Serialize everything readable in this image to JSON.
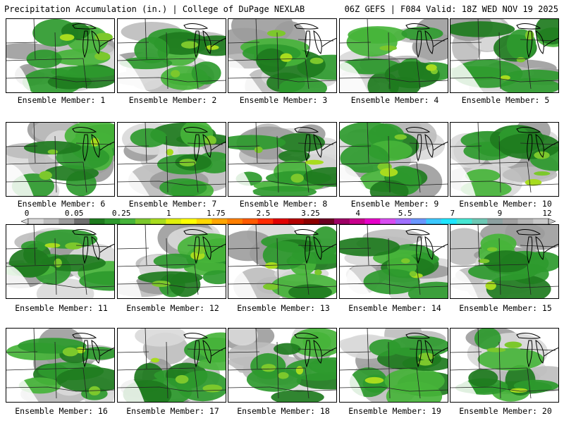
{
  "header": {
    "title_left": "Precipitation Accumulation (in.) | College of DuPage NEXLAB",
    "title_right": "06Z GEFS | F084 Valid: 18Z WED NOV 19 2025"
  },
  "colorbar": {
    "labels": [
      "0",
      "0.05",
      "0.25",
      "1",
      "1.75",
      "2.5",
      "3.25",
      "4",
      "5.5",
      "7",
      "9",
      "12"
    ],
    "colors": [
      "#d9d9d9",
      "#bdbdbd",
      "#9c9c9c",
      "#6e6e6e",
      "#1e7b1e",
      "#2e9a2e",
      "#46b43a",
      "#7cc82c",
      "#a8dc1e",
      "#e0f00c",
      "#ffff00",
      "#ffd700",
      "#ffa500",
      "#ff7f00",
      "#ff5a00",
      "#ff2a00",
      "#e00000",
      "#b40000",
      "#8c0000",
      "#6a0022",
      "#9c0064",
      "#c8008c",
      "#e600c8",
      "#d84cf0",
      "#a070ff",
      "#6a96ff",
      "#3cc8ff",
      "#1ee6ff",
      "#46e6d2",
      "#6ec8b4",
      "#8ca0a0",
      "#a0a0a0",
      "#b4b4b4",
      "#c8c8c8"
    ]
  },
  "members": [
    {
      "caption": "Ensemble Member: 1"
    },
    {
      "caption": "Ensemble Member: 2"
    },
    {
      "caption": "Ensemble Member: 3"
    },
    {
      "caption": "Ensemble Member: 4"
    },
    {
      "caption": "Ensemble Member: 5"
    },
    {
      "caption": "Ensemble Member: 6"
    },
    {
      "caption": "Ensemble Member: 7"
    },
    {
      "caption": "Ensemble Member: 8"
    },
    {
      "caption": "Ensemble Member: 9"
    },
    {
      "caption": "Ensemble Member: 10"
    },
    {
      "caption": "Ensemble Member: 11"
    },
    {
      "caption": "Ensemble Member: 12"
    },
    {
      "caption": "Ensemble Member: 13"
    },
    {
      "caption": "Ensemble Member: 14"
    },
    {
      "caption": "Ensemble Member: 15"
    },
    {
      "caption": "Ensemble Member: 16"
    },
    {
      "caption": "Ensemble Member: 17"
    },
    {
      "caption": "Ensemble Member: 18"
    },
    {
      "caption": "Ensemble Member: 19"
    },
    {
      "caption": "Ensemble Member: 20"
    }
  ]
}
